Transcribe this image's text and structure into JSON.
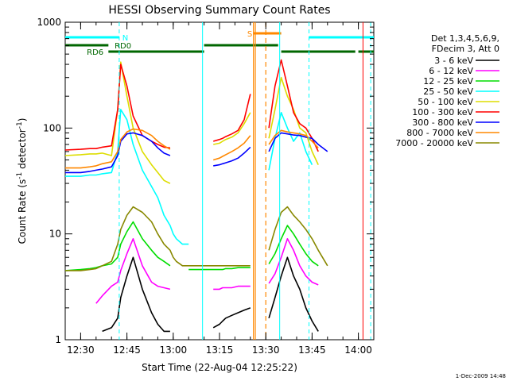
{
  "chart_data": {
    "type": "line",
    "title": "HESSI Observing Summary Count Rates",
    "xlabel": "Start Time (22-Aug-04 12:25:22)",
    "ylabel_main": "Count Rate (s",
    "ylabel_sup1": "-1",
    "ylabel_mid": " detector",
    "ylabel_sup2": "-1",
    "ylabel_end": ")",
    "yscale": "log",
    "ylim": [
      1,
      1000
    ],
    "xlim_minutes_after_1225": [
      0,
      100
    ],
    "x_ticks": [
      "12:30",
      "12:45",
      "13:00",
      "13:15",
      "13:30",
      "13:45",
      "14:00"
    ],
    "y_tick_labels": [
      "1",
      "10",
      "100",
      "1000"
    ],
    "y_tick_values": [
      1,
      10,
      100,
      1000
    ],
    "legend": {
      "placement": "right",
      "header1": "Det 1,3,4,5,6,9,",
      "header2": "FDecim 3, Att 0"
    },
    "x_time": [
      0,
      5,
      8,
      10,
      12,
      15,
      17,
      18,
      20,
      22,
      25,
      28,
      30,
      32,
      34,
      35,
      36,
      38,
      40,
      42,
      45,
      48,
      50,
      51,
      52,
      54,
      56,
      58,
      60,
      61,
      62,
      64,
      66,
      68,
      70,
      72,
      74,
      76,
      78,
      80,
      82,
      85,
      88,
      90,
      92,
      95,
      98,
      100
    ],
    "series": [
      {
        "name": "3 - 6 keV",
        "color": "#000000",
        "values": [
          null,
          null,
          null,
          null,
          1.2,
          1.3,
          1.6,
          2.5,
          4,
          6,
          3,
          1.8,
          1.4,
          1.2,
          1.2,
          null,
          null,
          null,
          null,
          null,
          null,
          1.3,
          1.4,
          1.5,
          1.6,
          1.7,
          1.8,
          1.9,
          2.0,
          null,
          null,
          null,
          1.6,
          2.5,
          4,
          6,
          4,
          3,
          2,
          1.5,
          1.2,
          null,
          null,
          null,
          null,
          null,
          null,
          null
        ]
      },
      {
        "name": "6 - 12 keV",
        "color": "#ff00ff",
        "values": [
          null,
          null,
          null,
          2.2,
          2.6,
          3.2,
          3.5,
          4.5,
          6.5,
          9,
          5,
          3.5,
          3.2,
          3.1,
          3.0,
          null,
          null,
          null,
          null,
          null,
          null,
          3.0,
          3.0,
          3.1,
          3.1,
          3.1,
          3.2,
          3.2,
          3.2,
          null,
          null,
          null,
          3.4,
          4.2,
          6,
          9,
          7,
          5,
          4,
          3.5,
          3.3,
          null,
          null,
          null,
          null,
          null,
          null,
          null
        ]
      },
      {
        "name": "12 - 25 keV",
        "color": "#00dd00",
        "values": [
          4.5,
          4.6,
          4.7,
          4.8,
          5.0,
          5.2,
          6,
          8,
          10.5,
          13,
          9,
          7,
          6,
          5.5,
          5.0,
          null,
          null,
          null,
          4.6,
          4.6,
          4.6,
          4.6,
          4.6,
          4.6,
          4.7,
          4.7,
          4.8,
          4.8,
          4.8,
          null,
          null,
          null,
          5.2,
          6.5,
          9,
          12,
          10,
          8,
          6.5,
          5.5,
          5.0,
          null,
          null,
          null,
          null,
          null,
          null,
          null
        ]
      },
      {
        "name": "25 - 50 keV",
        "color": "#00ffff",
        "values": [
          35,
          35,
          36,
          36,
          37,
          38,
          60,
          150,
          120,
          70,
          40,
          28,
          22,
          15,
          12,
          10,
          9,
          8,
          8,
          null,
          null,
          null,
          null,
          null,
          null,
          null,
          null,
          null,
          null,
          null,
          null,
          null,
          40,
          80,
          140,
          100,
          75,
          90,
          60,
          45,
          null,
          null,
          null,
          null,
          null,
          null,
          null,
          null
        ]
      },
      {
        "name": "50 - 100 keV",
        "color": "#dddd00",
        "values": [
          55,
          56,
          57,
          57,
          58,
          55,
          150,
          420,
          200,
          100,
          60,
          45,
          38,
          32,
          30,
          null,
          null,
          null,
          null,
          null,
          null,
          70,
          72,
          75,
          78,
          82,
          90,
          110,
          140,
          null,
          null,
          null,
          80,
          150,
          300,
          200,
          150,
          100,
          90,
          60,
          45,
          null,
          null,
          null,
          null,
          null,
          null,
          null
        ]
      },
      {
        "name": "100 - 300 keV",
        "color": "#ff0000",
        "values": [
          62,
          63,
          64,
          64,
          66,
          68,
          150,
          400,
          250,
          130,
          85,
          75,
          70,
          66,
          65,
          null,
          null,
          null,
          null,
          null,
          null,
          75,
          78,
          80,
          83,
          88,
          95,
          120,
          210,
          null,
          null,
          null,
          100,
          250,
          440,
          250,
          140,
          110,
          100,
          80,
          60,
          null,
          null,
          null,
          null,
          null,
          null,
          null
        ]
      },
      {
        "name": "300 - 800 keV",
        "color": "#0000ff",
        "values": [
          38,
          38,
          39,
          40,
          41,
          43,
          55,
          75,
          88,
          90,
          85,
          75,
          65,
          58,
          55,
          null,
          null,
          null,
          null,
          null,
          null,
          44,
          45,
          46,
          47,
          49,
          52,
          58,
          66,
          null,
          null,
          null,
          60,
          80,
          90,
          88,
          86,
          85,
          82,
          80,
          70,
          60,
          null,
          null,
          null,
          null,
          null,
          null
        ]
      },
      {
        "name": "800 - 7000 keV",
        "color": "#ff8800",
        "values": [
          42,
          42,
          43,
          44,
          46,
          48,
          60,
          78,
          92,
          98,
          95,
          85,
          75,
          68,
          63,
          null,
          null,
          null,
          null,
          null,
          null,
          50,
          52,
          54,
          56,
          60,
          65,
          72,
          85,
          null,
          null,
          null,
          70,
          85,
          95,
          92,
          90,
          88,
          85,
          75,
          65,
          null,
          null,
          null,
          null,
          null,
          null,
          null
        ]
      },
      {
        "name": "7000 - 20000 keV",
        "color": "#888800",
        "values": [
          4.5,
          4.5,
          4.6,
          4.7,
          5,
          5.5,
          8,
          11,
          15,
          18,
          16,
          13,
          10,
          8,
          7,
          6,
          5.5,
          5,
          5,
          5,
          5,
          5,
          5,
          5,
          5,
          5,
          5,
          5,
          5,
          null,
          null,
          null,
          7,
          11,
          16,
          18,
          15,
          13,
          11,
          9,
          7,
          5,
          null,
          null,
          null,
          null,
          null,
          null
        ]
      }
    ],
    "annotations": [
      {
        "text": "N",
        "color": "#00ffff"
      },
      {
        "text": "RD0",
        "color": "#006600"
      },
      {
        "text": "RD6",
        "color": "#006600"
      },
      {
        "text": "S",
        "color": "#ff8800"
      }
    ],
    "footer_timestamp": "1-Dec-2009 14:48"
  }
}
